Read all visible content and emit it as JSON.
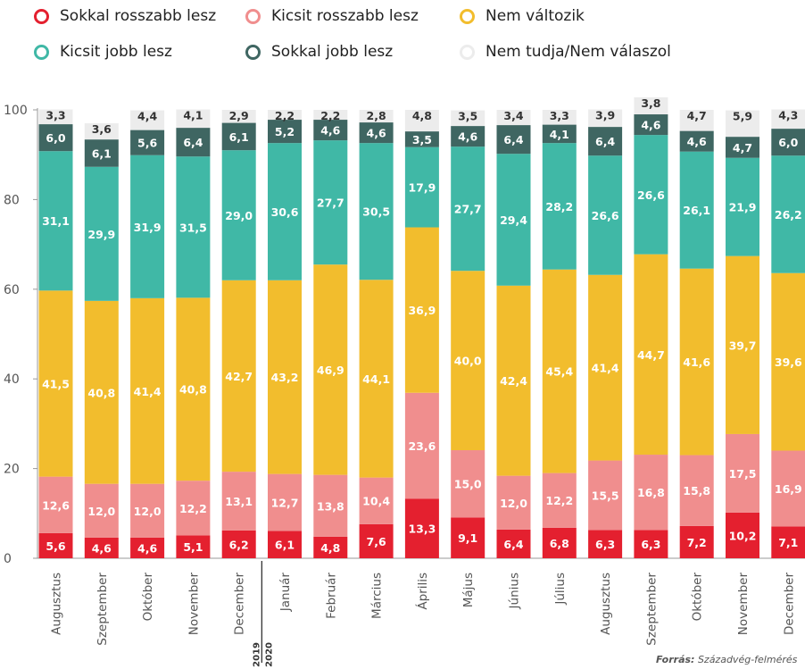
{
  "legend": [
    {
      "label": "Sokkal rosszabb lesz",
      "color": "#e4202f"
    },
    {
      "label": "Kicsit rosszabb lesz",
      "color": "#f08e8e"
    },
    {
      "label": "Nem változik",
      "color": "#f2bd2d"
    },
    {
      "label": "Kicsit jobb lesz",
      "color": "#40b8a6"
    },
    {
      "label": "Sokkal jobb lesz",
      "color": "#3f6662"
    },
    {
      "label": "Nem tudja/Nem válaszol",
      "color": "#ececec"
    }
  ],
  "source": {
    "prefix": "Forrás:",
    "text": "Századvég-felmérés"
  },
  "chart_data": {
    "type": "bar",
    "stacked": true,
    "ylim": [
      0,
      100
    ],
    "yticks": [
      0,
      20,
      40,
      60,
      80,
      100
    ],
    "categories": [
      "Augusztus",
      "Szeptember",
      "Október",
      "November",
      "December",
      "Január",
      "Február",
      "Március",
      "Április",
      "Május",
      "Június",
      "Július",
      "Augusztus",
      "Szeptember",
      "Október",
      "November",
      "December"
    ],
    "year_labels": [
      "2019",
      "2020"
    ],
    "series": [
      {
        "name": "Sokkal rosszabb lesz",
        "color": "#e4202f",
        "values": [
          5.6,
          4.6,
          4.6,
          5.1,
          6.2,
          6.1,
          4.8,
          7.6,
          13.3,
          9.1,
          6.4,
          6.8,
          6.3,
          6.3,
          7.2,
          10.2,
          7.1
        ]
      },
      {
        "name": "Kicsit rosszabb lesz",
        "color": "#f08e8e",
        "values": [
          12.6,
          12.0,
          12.0,
          12.2,
          13.1,
          12.7,
          13.8,
          10.4,
          23.6,
          15.0,
          12.0,
          12.2,
          15.5,
          16.8,
          15.8,
          17.5,
          16.9
        ]
      },
      {
        "name": "Nem változik",
        "color": "#f2bd2d",
        "values": [
          41.5,
          40.8,
          41.4,
          40.8,
          42.7,
          43.2,
          46.9,
          44.1,
          36.9,
          40.0,
          42.4,
          45.4,
          41.4,
          44.7,
          41.6,
          39.7,
          39.6
        ]
      },
      {
        "name": "Kicsit jobb lesz",
        "color": "#40b8a6",
        "values": [
          31.1,
          29.9,
          31.9,
          31.5,
          29.0,
          30.6,
          27.7,
          30.5,
          17.9,
          27.7,
          29.4,
          28.2,
          26.6,
          26.6,
          26.1,
          21.9,
          26.2
        ]
      },
      {
        "name": "Sokkal jobb lesz",
        "color": "#3f6662",
        "values": [
          6.0,
          6.1,
          5.6,
          6.4,
          6.1,
          5.2,
          4.6,
          4.6,
          3.5,
          4.6,
          6.4,
          4.1,
          6.4,
          4.6,
          4.6,
          4.7,
          6.0
        ]
      },
      {
        "name": "Nem tudja/Nem válaszol",
        "color": "#ececec",
        "values": [
          3.3,
          3.6,
          4.4,
          4.1,
          2.9,
          2.2,
          2.2,
          2.8,
          4.8,
          3.5,
          3.4,
          3.3,
          3.9,
          3.8,
          4.7,
          5.9,
          4.3
        ]
      }
    ]
  }
}
